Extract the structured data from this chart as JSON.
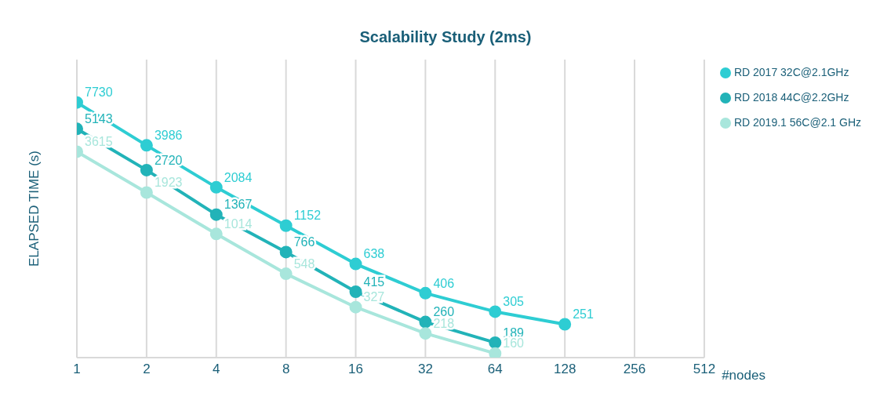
{
  "chart_data": {
    "type": "line",
    "title": "Scalability Study (2ms)",
    "xlabel": "#nodes",
    "ylabel": "ELAPSED TIME (s)",
    "x": [
      1,
      2,
      4,
      8,
      16,
      32,
      64,
      128
    ],
    "series": [
      {
        "name": "RD 2017 32C@2.1GHz",
        "color": "#2ecdd3",
        "values": [
          7730,
          3986,
          2084,
          1152,
          638,
          406,
          305,
          251
        ]
      },
      {
        "name": "RD 2018 44C@2.2GHz",
        "color": "#22b3b8",
        "values": [
          5143,
          2720,
          1367,
          766,
          415,
          260,
          189,
          null
        ]
      },
      {
        "name": "RD 2019.1 56C@2.1 GHz",
        "color": "#a8e6dc",
        "values": [
          3615,
          1923,
          1014,
          548,
          327,
          218,
          160,
          null
        ]
      }
    ],
    "log": "xy",
    "xlim": [
      1,
      512
    ],
    "xticks": [
      1,
      2,
      4,
      8,
      16,
      32,
      64,
      128,
      256,
      512
    ],
    "ylim": [
      150,
      15000
    ],
    "tick_labels": "x",
    "grid": "x",
    "legend": "top right",
    "marker": "circle",
    "line_style": "solid",
    "data_labels": true
  }
}
